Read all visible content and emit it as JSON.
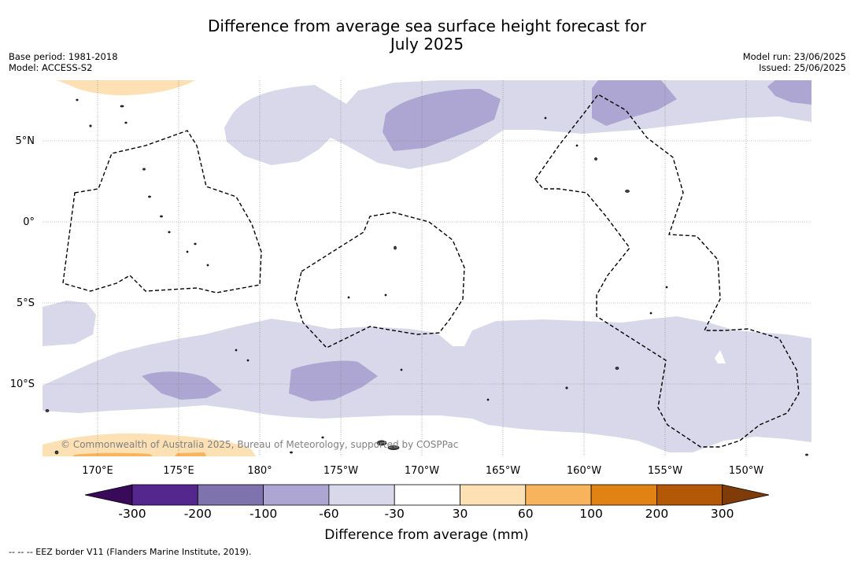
{
  "title_line1": "Difference from average sea surface height forecast for",
  "title_line2": "July 2025",
  "base_period": "Base period: 1981-2018",
  "model": "Model: ACCESS-S2",
  "model_run": "Model run: 23/06/2025",
  "issued": "Issued: 25/06/2025",
  "copyright": "© Commonwealth of Australia 2025, Bureau of Meteorology, supported by COSPPac",
  "footer": "--  --  -- EEZ border V11 (Flanders Marine Institute, 2019).",
  "lat_labels": [
    "5°N",
    "0°",
    "5°S",
    "10°S"
  ],
  "lon_labels": [
    "170°E",
    "175°E",
    "180°",
    "175°W",
    "170°W",
    "165°W",
    "160°W",
    "155°W",
    "150°W"
  ],
  "colorbar": {
    "title": "Difference from average (mm)",
    "ticks": [
      "-300",
      "-200",
      "-100",
      "-60",
      "-30",
      "30",
      "60",
      "100",
      "200",
      "300"
    ],
    "colors": [
      "#3a0a5a",
      "#54278f",
      "#7f73ad",
      "#ada6d2",
      "#d8d8ea",
      "#ffffff",
      "#fde0b4",
      "#f8b45c",
      "#e08214",
      "#b35806",
      "#7f3b08"
    ]
  }
}
